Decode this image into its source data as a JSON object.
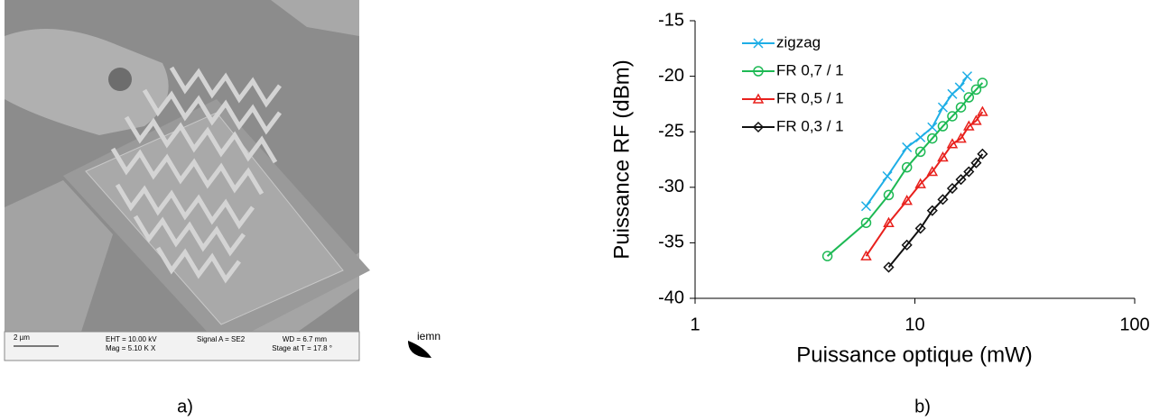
{
  "sem_image": {
    "scale_bar": "2 µm",
    "eht": "EHT = 10.00 kV",
    "mag": "Mag =  5.10 K X",
    "signal": "Signal A = SE2",
    "wd": "WD =  6.7 mm",
    "stage": "Stage at T = 17.8 °",
    "logo": "iemn"
  },
  "captions": {
    "a": "a)",
    "b": "b)"
  },
  "chart_data": {
    "type": "line",
    "x_label": "Puissance optique (mW)",
    "y_label": "Puissance RF (dBm)",
    "xscale": "log",
    "xlim": [
      1,
      100
    ],
    "xticks": [
      1,
      10,
      100
    ],
    "ylim": [
      -40,
      -15
    ],
    "yticks": [
      -40,
      -35,
      -30,
      -25,
      -20,
      -15
    ],
    "grid": false,
    "legend": "upper left",
    "series": [
      {
        "name": "zigzag",
        "color": "#1eaee6",
        "marker": "x",
        "x": [
          6,
          7.5,
          9.2,
          10.6,
          12,
          13.4,
          14.8,
          16,
          17.3
        ],
        "values": [
          -31.7,
          -29,
          -26.4,
          -25.5,
          -24.6,
          -22.8,
          -21.6,
          -21,
          -20
        ]
      },
      {
        "name": "FR 0,7 / 1",
        "color": "#1db954",
        "marker": "circle",
        "x": [
          4,
          6,
          7.6,
          9.2,
          10.6,
          12,
          13.4,
          14.8,
          16.2,
          17.6,
          19,
          20.3
        ],
        "values": [
          -36.2,
          -33.2,
          -30.7,
          -28.2,
          -26.8,
          -25.6,
          -24.5,
          -23.6,
          -22.8,
          -21.9,
          -21.2,
          -20.6
        ]
      },
      {
        "name": "FR 0,5 / 1",
        "color": "#e8201c",
        "marker": "triangle",
        "x": [
          6,
          7.6,
          9.2,
          10.6,
          12,
          13.4,
          14.8,
          16.2,
          17.6,
          19,
          20.3
        ],
        "values": [
          -36.2,
          -33.2,
          -31.2,
          -29.7,
          -28.6,
          -27.3,
          -26.1,
          -25.6,
          -24.5,
          -24,
          -23.2
        ]
      },
      {
        "name": "FR 0,3 / 1",
        "color": "#111111",
        "marker": "diamond",
        "x": [
          7.6,
          9.2,
          10.6,
          12,
          13.4,
          14.8,
          16.2,
          17.6,
          19,
          20.3
        ],
        "values": [
          -37.2,
          -35.2,
          -33.7,
          -32.1,
          -31.1,
          -30.1,
          -29.3,
          -28.6,
          -27.8,
          -27
        ]
      }
    ]
  }
}
